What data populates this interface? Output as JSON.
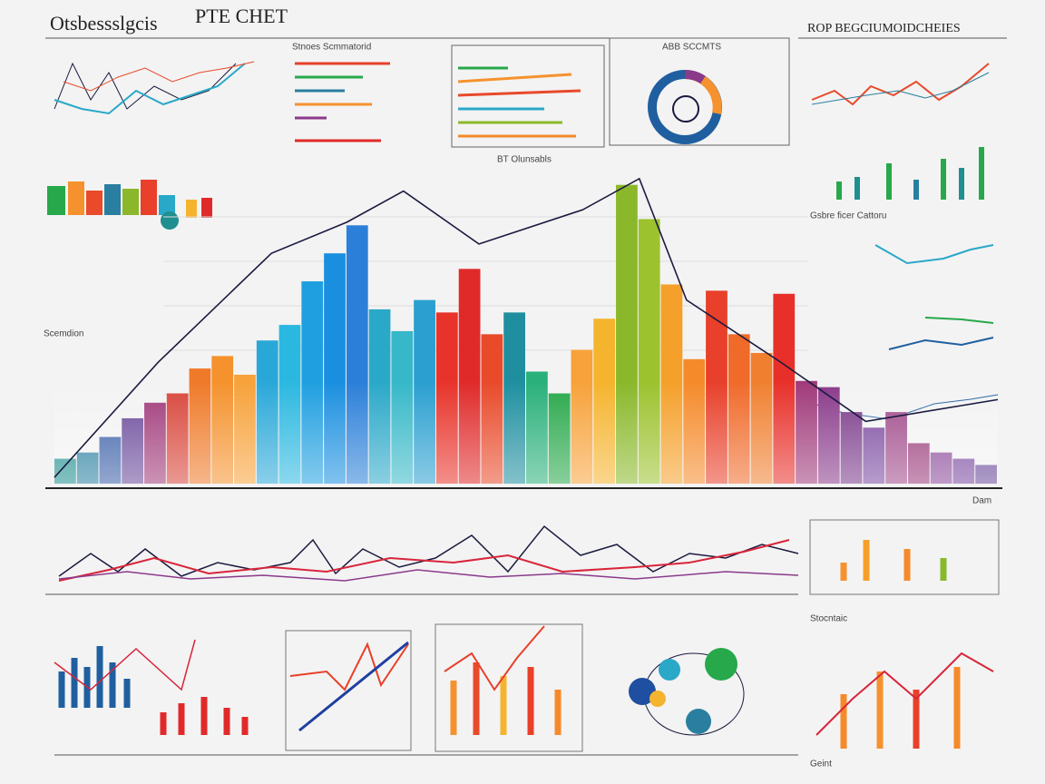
{
  "header": {
    "title": "PTE CHET",
    "left": "Otsbessslgcis",
    "right": "ROP BEGCIUMOIDCHEIES"
  },
  "labels": [
    "Scemdion",
    "BT Olunsabls",
    "Stnoes Scmmatorid",
    "ABB SCCMTS",
    "Gsbre ficer Cattoru",
    "Stocntaic",
    "Dam",
    "Geint"
  ],
  "chart_data": {
    "type": "bar",
    "categories": [
      null,
      null,
      null,
      null,
      null,
      null,
      null,
      null,
      null,
      null,
      null,
      null,
      null,
      null,
      null,
      null,
      null,
      null,
      null,
      null,
      null,
      null,
      null,
      null,
      null,
      null,
      null,
      null,
      null,
      null,
      null,
      null,
      null,
      null,
      null,
      null,
      null,
      null,
      null,
      null,
      null,
      null
    ],
    "values": [
      8,
      10,
      15,
      21,
      26,
      29,
      37,
      41,
      35,
      46,
      51,
      65,
      74,
      83,
      56,
      49,
      59,
      55,
      69,
      48,
      55,
      36,
      29,
      43,
      53,
      96,
      85,
      64,
      40,
      62,
      48,
      42,
      61,
      33,
      31,
      23,
      18,
      23,
      13,
      10,
      8,
      6
    ],
    "colors": [
      "#1f8f8f",
      "#2a7fa0",
      "#3b5fa8",
      "#6a4a9a",
      "#a03a7a",
      "#d8453a",
      "#ef7a2a",
      "#f5922e",
      "#f7a23a",
      "#29a8d8",
      "#2bb8e0",
      "#1f9fe0",
      "#1a8fe0",
      "#2b7fd8",
      "#2aa8c8",
      "#36b8c8",
      "#2a9fd0",
      "#e8332a",
      "#e02a2a",
      "#e84a2a",
      "#1f8f9f",
      "#2ab07a",
      "#27a84a",
      "#f7a23a",
      "#f5b42e",
      "#8ab82a",
      "#9cc22e",
      "#f5a02a",
      "#f58a2a",
      "#e8402a",
      "#f06a2a",
      "#f08030",
      "#e8302a",
      "#a03a7a",
      "#8a3a8a",
      "#7a3a8a",
      "#7b4aa0",
      "#a04a8a",
      "#9a3a7a",
      "#8a4a9a",
      "#7a4aa0",
      "#6a4a9a"
    ],
    "ylim": [
      0,
      100
    ],
    "xlim": [
      0,
      100
    ],
    "line": {
      "color": "#1a1a40",
      "x": [
        0,
        11,
        23,
        31,
        37,
        45,
        56,
        62,
        67,
        77,
        86,
        100
      ],
      "values": [
        2,
        39,
        74,
        84,
        94,
        77,
        88,
        98,
        59,
        39,
        20,
        27
      ]
    }
  }
}
